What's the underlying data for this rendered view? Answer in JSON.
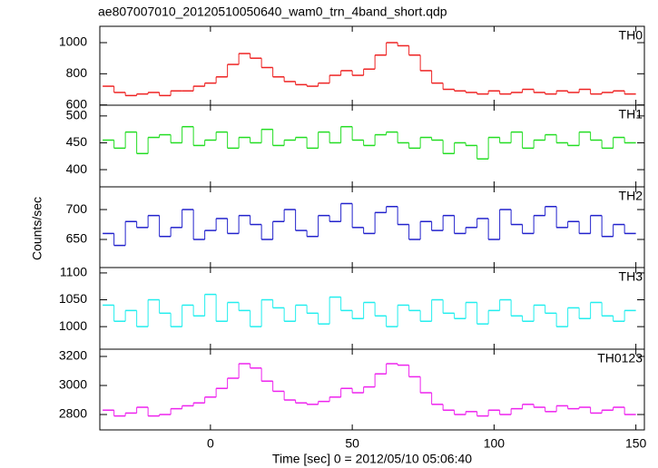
{
  "title": "ae807007010_20120510050640_wam0_trn_4band_short.qdp",
  "xlabel": "Time [sec] 0 = 2012/05/10 05:06:40",
  "ylabel": "Counts/sec",
  "chart_data": [
    {
      "type": "line",
      "label": "TH0",
      "color": "#ee2222",
      "x": [
        -36,
        -32,
        -28,
        -24,
        -20,
        -16,
        -12,
        -8,
        -4,
        0,
        4,
        8,
        12,
        16,
        20,
        24,
        28,
        32,
        36,
        40,
        44,
        48,
        52,
        56,
        60,
        64,
        68,
        72,
        76,
        80,
        84,
        88,
        92,
        96,
        100,
        104,
        108,
        112,
        116,
        120,
        124,
        128,
        132,
        136,
        140,
        144,
        148
      ],
      "values": [
        720,
        680,
        660,
        670,
        680,
        660,
        690,
        690,
        720,
        740,
        780,
        860,
        930,
        900,
        840,
        780,
        750,
        730,
        720,
        740,
        790,
        820,
        790,
        830,
        920,
        1000,
        980,
        920,
        820,
        740,
        700,
        690,
        680,
        670,
        690,
        670,
        680,
        700,
        680,
        670,
        690,
        680,
        700,
        670,
        680,
        690,
        670
      ],
      "xlim": [
        -39,
        153
      ],
      "ylim": [
        598,
        1105
      ],
      "yticks": [
        600,
        800,
        1000
      ]
    },
    {
      "type": "line",
      "label": "TH1",
      "color": "#22dd22",
      "x": [
        -36,
        -32,
        -28,
        -24,
        -20,
        -16,
        -12,
        -8,
        -4,
        0,
        4,
        8,
        12,
        16,
        20,
        24,
        28,
        32,
        36,
        40,
        44,
        48,
        52,
        56,
        60,
        64,
        68,
        72,
        76,
        80,
        84,
        88,
        92,
        96,
        100,
        104,
        108,
        112,
        116,
        120,
        124,
        128,
        132,
        136,
        140,
        144,
        148
      ],
      "values": [
        455,
        440,
        470,
        430,
        460,
        465,
        450,
        480,
        445,
        455,
        470,
        440,
        460,
        450,
        475,
        445,
        455,
        460,
        440,
        470,
        450,
        480,
        455,
        445,
        465,
        470,
        450,
        440,
        460,
        455,
        430,
        450,
        445,
        420,
        460,
        450,
        470,
        440,
        455,
        465,
        450,
        445,
        470,
        455,
        440,
        460,
        450
      ],
      "xlim": [
        -39,
        153
      ],
      "ylim": [
        368,
        520
      ],
      "yticks": [
        400,
        450,
        500
      ]
    },
    {
      "type": "line",
      "label": "TH2",
      "color": "#2222cc",
      "x": [
        -36,
        -32,
        -28,
        -24,
        -20,
        -16,
        -12,
        -8,
        -4,
        0,
        4,
        8,
        12,
        16,
        20,
        24,
        28,
        32,
        36,
        40,
        44,
        48,
        52,
        56,
        60,
        64,
        68,
        72,
        76,
        80,
        84,
        88,
        92,
        96,
        100,
        104,
        108,
        112,
        116,
        120,
        124,
        128,
        132,
        136,
        140,
        144,
        148
      ],
      "values": [
        660,
        640,
        680,
        670,
        690,
        655,
        670,
        700,
        650,
        665,
        685,
        660,
        690,
        675,
        650,
        680,
        700,
        665,
        655,
        690,
        680,
        710,
        670,
        660,
        695,
        705,
        675,
        650,
        680,
        665,
        690,
        660,
        670,
        685,
        650,
        700,
        675,
        660,
        690,
        705,
        670,
        680,
        660,
        690,
        655,
        675,
        660
      ],
      "xlim": [
        -39,
        153
      ],
      "ylim": [
        603,
        738
      ],
      "yticks": [
        650,
        700
      ]
    },
    {
      "type": "line",
      "label": "TH3",
      "color": "#22eeee",
      "x": [
        -36,
        -32,
        -28,
        -24,
        -20,
        -16,
        -12,
        -8,
        -4,
        0,
        4,
        8,
        12,
        16,
        20,
        24,
        28,
        32,
        36,
        40,
        44,
        48,
        52,
        56,
        60,
        64,
        68,
        72,
        76,
        80,
        84,
        88,
        92,
        96,
        100,
        104,
        108,
        112,
        116,
        120,
        124,
        128,
        132,
        136,
        140,
        144,
        148
      ],
      "values": [
        1040,
        1010,
        1030,
        1000,
        1050,
        1025,
        1000,
        1040,
        1020,
        1060,
        1010,
        1045,
        1030,
        1000,
        1050,
        1035,
        1010,
        1040,
        1025,
        1005,
        1055,
        1030,
        1015,
        1045,
        1020,
        1000,
        1040,
        1030,
        1010,
        1050,
        1025,
        1015,
        1045,
        1005,
        1030,
        1050,
        1020,
        1010,
        1040,
        1025,
        1000,
        1035,
        1015,
        1045,
        1020,
        1010,
        1030
      ],
      "xlim": [
        -39,
        153
      ],
      "ylim": [
        958,
        1110
      ],
      "yticks": [
        1000,
        1050,
        1100
      ]
    },
    {
      "type": "line",
      "label": "TH0123",
      "color": "#ee22ee",
      "x": [
        -36,
        -32,
        -28,
        -24,
        -20,
        -16,
        -12,
        -8,
        -4,
        0,
        4,
        8,
        12,
        16,
        20,
        24,
        28,
        32,
        36,
        40,
        44,
        48,
        52,
        56,
        60,
        64,
        68,
        72,
        76,
        80,
        84,
        88,
        92,
        96,
        100,
        104,
        108,
        112,
        116,
        120,
        124,
        128,
        132,
        136,
        140,
        144,
        148
      ],
      "values": [
        2830,
        2790,
        2810,
        2850,
        2790,
        2800,
        2840,
        2860,
        2880,
        2920,
        2980,
        3050,
        3150,
        3120,
        3030,
        2960,
        2900,
        2880,
        2870,
        2890,
        2920,
        2980,
        2950,
        2990,
        3080,
        3150,
        3140,
        3060,
        2950,
        2870,
        2830,
        2800,
        2820,
        2790,
        2830,
        2800,
        2840,
        2870,
        2850,
        2820,
        2860,
        2840,
        2850,
        2810,
        2830,
        2850,
        2800
      ],
      "xlim": [
        -39,
        153
      ],
      "ylim": [
        2694,
        3250
      ],
      "yticks": [
        2800,
        3000,
        3200
      ],
      "xticks": [
        0,
        50,
        100,
        150
      ]
    }
  ]
}
